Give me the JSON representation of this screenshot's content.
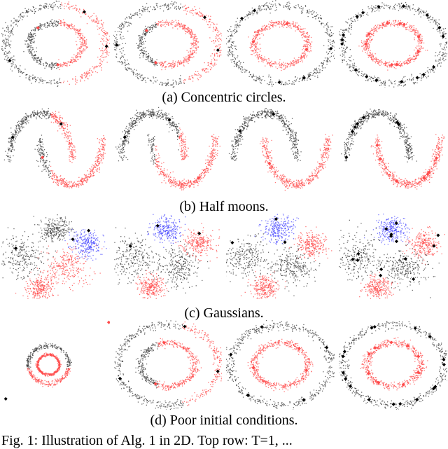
{
  "figure": {
    "captions": {
      "a": "(a) Concentric circles.",
      "b": "(b) Half moons.",
      "c": "(c) Gaussians.",
      "d": "(d) Poor initial conditions."
    },
    "fig_caption": "Fig. 1: Illustration of Alg. 1 in 2D. Top row: T=1, ..."
  },
  "colors": {
    "cluster_black": "#3a3a3a",
    "cluster_red": "#ff4a4a",
    "cluster_blue": "#4a4aff",
    "marker": "#000000"
  }
}
